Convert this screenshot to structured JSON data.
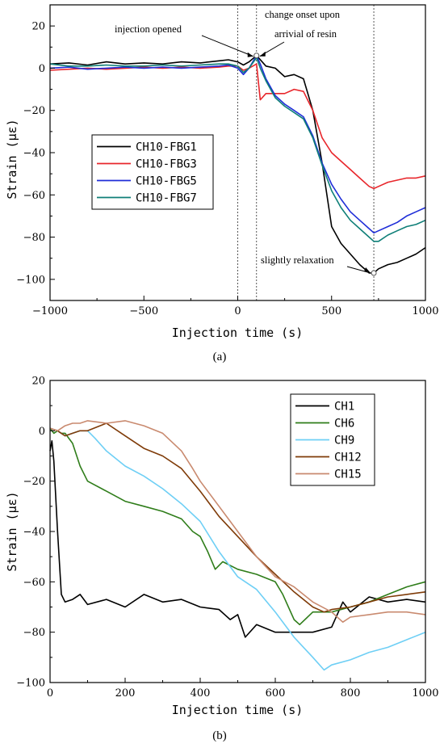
{
  "chart_data": [
    {
      "type": "line",
      "panel_label": "(a)",
      "xlabel": "Injection time (s)",
      "ylabel": "Strain (με)",
      "xlim": [
        -1000,
        1000
      ],
      "ylim": [
        -110,
        30
      ],
      "xticks": [
        -1000,
        -500,
        0,
        500,
        1000
      ],
      "yticks": [
        20,
        0,
        -20,
        -40,
        -60,
        -80,
        -100
      ],
      "grid": false,
      "legend_position": "middle-left",
      "vlines": [
        0,
        100,
        725
      ],
      "annotations": [
        {
          "text": "injection opened",
          "x": 100,
          "y": 5
        },
        {
          "text": "change  onset upon",
          "x": 100,
          "y": 5
        },
        {
          "text": "arrivial of resin",
          "x": 100,
          "y": 5
        },
        {
          "text": "slightly relaxation",
          "x": 725,
          "y": -97
        }
      ],
      "series": [
        {
          "name": "CH10-FBG1",
          "color": "#000000",
          "x": [
            -1000,
            -900,
            -800,
            -700,
            -600,
            -500,
            -400,
            -300,
            -200,
            -100,
            -50,
            0,
            30,
            60,
            100,
            150,
            200,
            250,
            300,
            350,
            400,
            450,
            500,
            550,
            600,
            650,
            700,
            725,
            750,
            800,
            850,
            900,
            950,
            1000
          ],
          "y": [
            2,
            2.5,
            1.5,
            3,
            2,
            2.5,
            2,
            3,
            2.5,
            3.5,
            4,
            3,
            1.5,
            3,
            6,
            1,
            0,
            -4,
            -3,
            -5,
            -20,
            -45,
            -75,
            -83,
            -88,
            -93,
            -97,
            -97,
            -95,
            -93,
            -92,
            -90,
            -88,
            -85
          ]
        },
        {
          "name": "CH10-FBG3",
          "color": "#e8262b",
          "x": [
            -1000,
            -900,
            -800,
            -700,
            -600,
            -500,
            -400,
            -300,
            -200,
            -100,
            -50,
            0,
            30,
            60,
            100,
            120,
            150,
            200,
            250,
            300,
            350,
            400,
            450,
            500,
            550,
            600,
            650,
            700,
            725,
            750,
            800,
            850,
            900,
            950,
            1000
          ],
          "y": [
            -1,
            -0.5,
            0,
            -0.5,
            0,
            0.5,
            0,
            0.5,
            0,
            0.5,
            1,
            1,
            -1,
            0,
            2,
            -15,
            -12,
            -12,
            -12,
            -10,
            -11,
            -20,
            -33,
            -40,
            -44,
            -48,
            -52,
            -56,
            -57,
            -56,
            -54,
            -53,
            -52,
            -52,
            -51
          ]
        },
        {
          "name": "CH10-FBG5",
          "color": "#1f2ed8",
          "x": [
            -1000,
            -900,
            -800,
            -700,
            -600,
            -500,
            -400,
            -300,
            -200,
            -100,
            -50,
            0,
            30,
            60,
            100,
            120,
            150,
            200,
            250,
            300,
            350,
            400,
            450,
            500,
            550,
            600,
            650,
            700,
            725,
            750,
            800,
            850,
            900,
            950,
            1000
          ],
          "y": [
            0,
            0.5,
            -0.5,
            0,
            0.5,
            0,
            0.5,
            0,
            0.5,
            1,
            1.5,
            0,
            -3,
            0,
            6,
            2,
            -5,
            -13,
            -17,
            -20,
            -23,
            -32,
            -45,
            -55,
            -62,
            -68,
            -72,
            -76,
            -78,
            -77,
            -75,
            -73,
            -70,
            -68,
            -66
          ]
        },
        {
          "name": "CH10-FBG7",
          "color": "#0f7f78",
          "x": [
            -1000,
            -900,
            -800,
            -700,
            -600,
            -500,
            -400,
            -300,
            -200,
            -100,
            -50,
            0,
            30,
            60,
            100,
            120,
            150,
            200,
            250,
            300,
            350,
            400,
            450,
            500,
            550,
            600,
            650,
            700,
            725,
            750,
            800,
            850,
            900,
            950,
            1000
          ],
          "y": [
            2,
            1,
            1,
            1.5,
            1,
            1,
            1.5,
            1,
            1.5,
            2,
            2,
            1,
            -2,
            0,
            5,
            0,
            -6,
            -14,
            -18,
            -21,
            -24,
            -33,
            -46,
            -58,
            -66,
            -72,
            -76,
            -80,
            -82,
            -82,
            -79,
            -77,
            -75,
            -74,
            -72
          ]
        }
      ]
    },
    {
      "type": "line",
      "panel_label": "(b)",
      "xlabel": "Injection time (s)",
      "ylabel": "Strain (με)",
      "xlim": [
        0,
        1000
      ],
      "ylim": [
        -100,
        20
      ],
      "xticks": [
        0,
        200,
        400,
        600,
        800,
        1000
      ],
      "yticks": [
        20,
        0,
        -20,
        -40,
        -60,
        -80,
        -100
      ],
      "grid": false,
      "legend_position": "top-right",
      "series": [
        {
          "name": "CH1",
          "color": "#000000",
          "x": [
            0,
            5,
            10,
            20,
            30,
            40,
            60,
            80,
            100,
            150,
            200,
            250,
            300,
            350,
            400,
            450,
            480,
            500,
            520,
            550,
            600,
            650,
            700,
            750,
            780,
            800,
            850,
            900,
            950,
            1000
          ],
          "y": [
            -8,
            -4,
            -12,
            -40,
            -65,
            -68,
            -67,
            -65,
            -69,
            -67,
            -70,
            -65,
            -68,
            -67,
            -70,
            -71,
            -75,
            -73,
            -82,
            -77,
            -80,
            -80,
            -80,
            -78,
            -68,
            -72,
            -66,
            -68,
            -67,
            -68
          ]
        },
        {
          "name": "CH6",
          "color": "#2f7d1a",
          "x": [
            0,
            10,
            20,
            30,
            40,
            60,
            80,
            100,
            150,
            200,
            250,
            300,
            350,
            380,
            400,
            420,
            440,
            460,
            500,
            550,
            600,
            620,
            650,
            665,
            700,
            750,
            800,
            850,
            900,
            950,
            1000
          ],
          "y": [
            1,
            -1,
            0,
            -1,
            -1,
            -5,
            -14,
            -20,
            -24,
            -28,
            -30,
            -32,
            -35,
            -40,
            -42,
            -48,
            -55,
            -52,
            -55,
            -57,
            -60,
            -65,
            -75,
            -77,
            -72,
            -72,
            -70,
            -68,
            -65,
            -62,
            -60
          ]
        },
        {
          "name": "CH9",
          "color": "#6ecff5",
          "x": [
            0,
            20,
            40,
            60,
            80,
            100,
            120,
            150,
            200,
            250,
            300,
            350,
            400,
            450,
            500,
            550,
            600,
            650,
            700,
            730,
            750,
            800,
            850,
            900,
            950,
            1000
          ],
          "y": [
            1,
            0,
            -2,
            -1,
            0,
            0,
            -3,
            -8,
            -14,
            -18,
            -23,
            -29,
            -36,
            -48,
            -58,
            -63,
            -72,
            -82,
            -90,
            -95,
            -93,
            -91,
            -88,
            -86,
            -83,
            -80
          ]
        },
        {
          "name": "CH12",
          "color": "#7f3b08",
          "x": [
            0,
            20,
            40,
            60,
            80,
            100,
            150,
            200,
            250,
            300,
            350,
            400,
            450,
            500,
            550,
            600,
            650,
            700,
            730,
            750,
            800,
            850,
            900,
            950,
            1000
          ],
          "y": [
            1,
            0,
            -2,
            -1,
            0,
            0,
            3,
            -2,
            -7,
            -10,
            -15,
            -24,
            -34,
            -42,
            -50,
            -57,
            -64,
            -70,
            -72,
            -71,
            -70,
            -68,
            -66,
            -65,
            -64
          ]
        },
        {
          "name": "CH15",
          "color": "#c98a6f",
          "x": [
            0,
            20,
            40,
            60,
            80,
            100,
            150,
            200,
            250,
            300,
            350,
            380,
            400,
            450,
            500,
            550,
            600,
            650,
            700,
            750,
            780,
            800,
            850,
            900,
            950,
            1000
          ],
          "y": [
            1,
            0,
            2,
            3,
            3,
            4,
            3,
            4,
            2,
            -1,
            -8,
            -15,
            -20,
            -30,
            -40,
            -50,
            -58,
            -62,
            -68,
            -72,
            -76,
            -74,
            -73,
            -72,
            -72,
            -73
          ]
        }
      ]
    }
  ]
}
